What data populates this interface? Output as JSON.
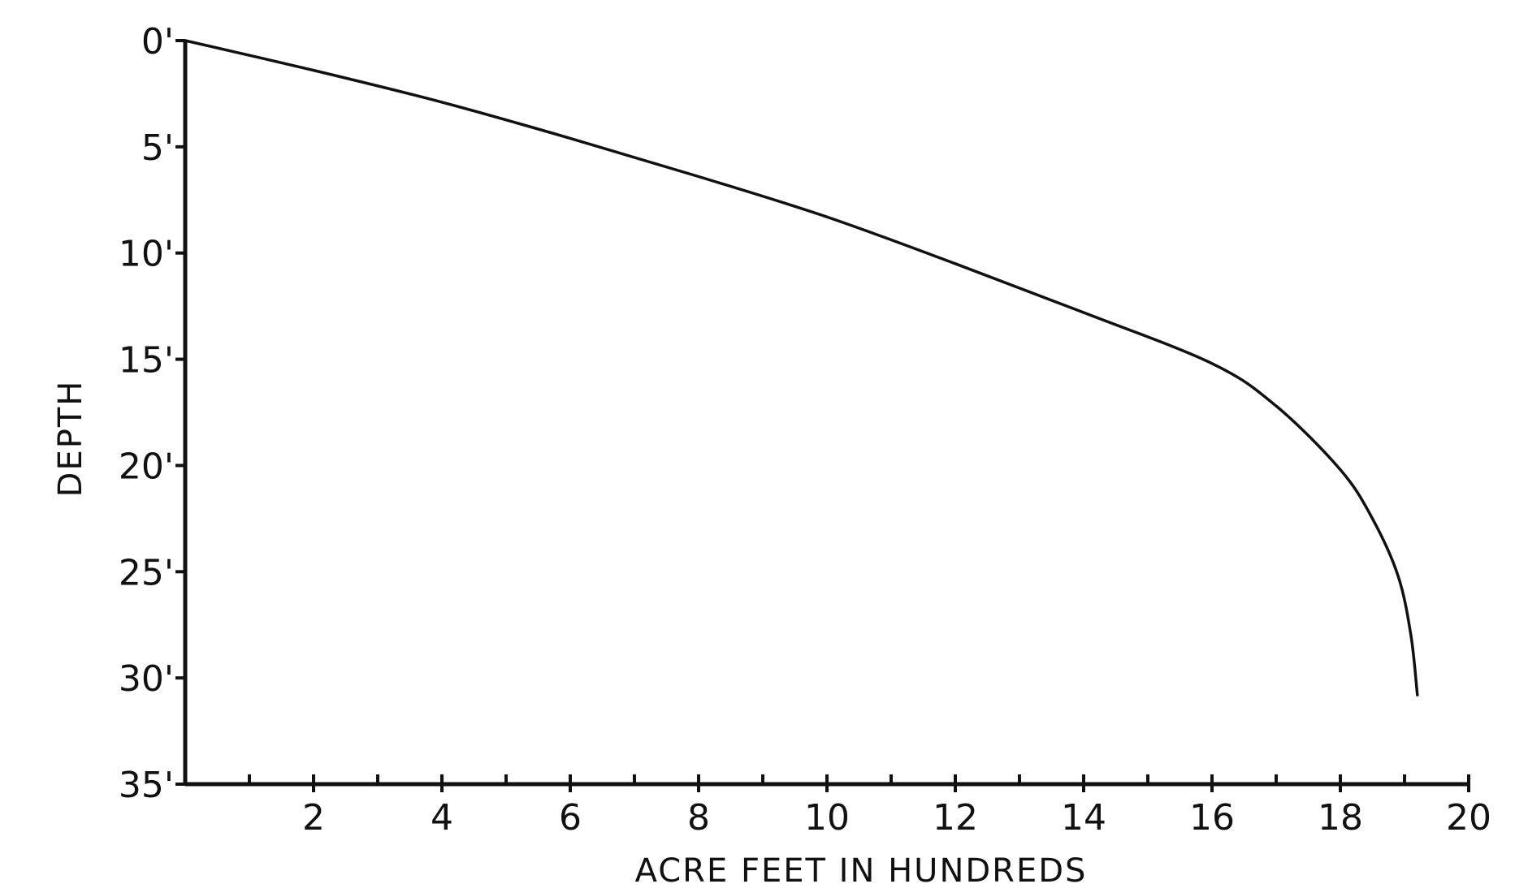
{
  "chart_data": {
    "type": "line",
    "title": "",
    "xlabel": "ACRE FEET IN HUNDREDS",
    "ylabel": "DEPTH",
    "xlim": [
      0,
      20
    ],
    "ylim": [
      0,
      35
    ],
    "y_inverted": true,
    "grid": false,
    "x_ticks": [
      {
        "value": 2,
        "label": "2"
      },
      {
        "value": 4,
        "label": "4"
      },
      {
        "value": 6,
        "label": "6"
      },
      {
        "value": 8,
        "label": "8"
      },
      {
        "value": 10,
        "label": "10"
      },
      {
        "value": 12,
        "label": "12"
      },
      {
        "value": 14,
        "label": "14"
      },
      {
        "value": 16,
        "label": "16"
      },
      {
        "value": 18,
        "label": "18"
      },
      {
        "value": 20,
        "label": "20"
      }
    ],
    "x_minor_ticks": [
      1,
      3,
      5,
      7,
      9,
      11,
      13,
      15,
      17,
      19
    ],
    "y_ticks": [
      {
        "value": 0,
        "label": "0'"
      },
      {
        "value": 5,
        "label": "5'"
      },
      {
        "value": 10,
        "label": "10'"
      },
      {
        "value": 15,
        "label": "15'"
      },
      {
        "value": 20,
        "label": "20'"
      },
      {
        "value": 25,
        "label": "25'"
      },
      {
        "value": 30,
        "label": "30'"
      },
      {
        "value": 35,
        "label": "35'"
      }
    ],
    "series": [
      {
        "color": "#111111",
        "x": [
          0,
          2,
          4,
          6,
          8,
          10,
          12,
          14,
          16,
          17,
          18,
          18.5,
          18.9,
          19.1,
          19.2
        ],
        "y": [
          0,
          1.4,
          2.9,
          4.6,
          6.4,
          8.3,
          10.5,
          12.8,
          15.2,
          17.2,
          20.2,
          22.5,
          25.2,
          28.0,
          30.8
        ]
      }
    ]
  }
}
